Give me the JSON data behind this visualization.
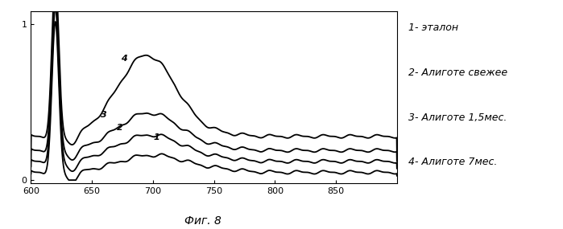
{
  "xlabel": "Фиг. 8",
  "xlim": [
    600,
    900
  ],
  "ylim": [
    -0.02,
    1.08
  ],
  "xticks": [
    600,
    650,
    700,
    750,
    800,
    850
  ],
  "yticks": [
    0,
    1
  ],
  "legend": [
    "1- эталон",
    "2- Алиготе свежее",
    "3- Алиготе 1,5мес.",
    "4- Алиготе 7мес."
  ],
  "line_color": "#000000",
  "background_color": "#ffffff",
  "label_fontsize": 8,
  "tick_fontsize": 8,
  "legend_fontsize": 9
}
